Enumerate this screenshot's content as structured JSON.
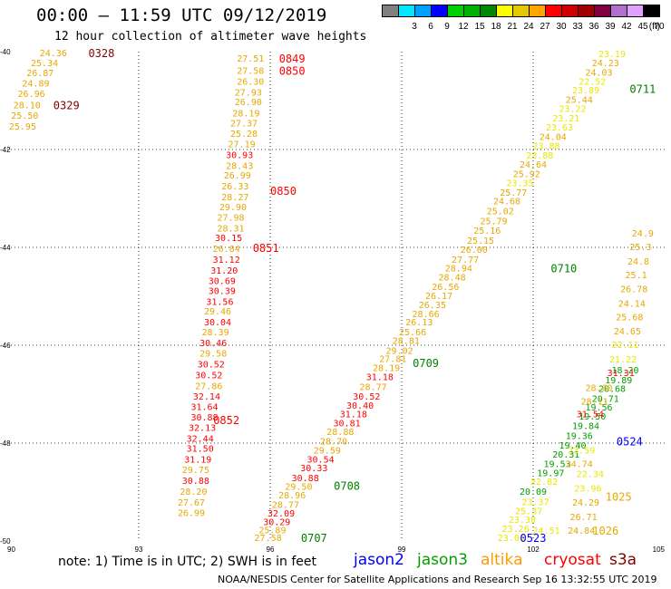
{
  "header": {
    "title": "00:00 – 11:59 UTC 09/12/2019",
    "subtitle": "12 hour collection of altimeter wave heights"
  },
  "scale": {
    "unit": "(ft)",
    "bins": [
      {
        "label": "",
        "color": "#808080"
      },
      {
        "label": "3",
        "color": "#00e8ff"
      },
      {
        "label": "6",
        "color": "#00a0ff"
      },
      {
        "label": "9",
        "color": "#0000ff"
      },
      {
        "label": "12",
        "color": "#00d000"
      },
      {
        "label": "15",
        "color": "#00b000"
      },
      {
        "label": "18",
        "color": "#008800"
      },
      {
        "label": "21",
        "color": "#ffff00"
      },
      {
        "label": "24",
        "color": "#e6c800"
      },
      {
        "label": "27",
        "color": "#ffa500"
      },
      {
        "label": "30",
        "color": "#ff0000"
      },
      {
        "label": "33",
        "color": "#d00000"
      },
      {
        "label": "36",
        "color": "#a00000"
      },
      {
        "label": "39",
        "color": "#800040"
      },
      {
        "label": "42",
        "color": "#b070d0"
      },
      {
        "label": "45",
        "color": "#e0a0ff"
      },
      {
        "label": "70",
        "color": "#000000"
      }
    ]
  },
  "footer": {
    "note": "note: 1) Time is in UTC; 2) SWH is in feet",
    "credit": "NOAA/NESDIS Center for Satellite Applications and Research    Sep 16 13:32:55 UTC 2019",
    "satellites": [
      {
        "name": "jason2",
        "color": "#0000ff"
      },
      {
        "name": "jason3",
        "color": "#00a000"
      },
      {
        "name": "altika",
        "color": "#ff9900"
      },
      {
        "name": "cryosat",
        "color": "#ff0000"
      },
      {
        "name": "s3a",
        "color": "#800000"
      }
    ]
  },
  "chart_data": {
    "type": "scatter",
    "xlim": [
      90,
      105
    ],
    "ylim": [
      -50,
      -40
    ],
    "xticks": [
      "90",
      "93",
      "96",
      "99",
      "102",
      "105"
    ],
    "yticks": [
      "-40",
      "-42",
      "-44",
      "-46",
      "-48",
      "-50"
    ],
    "grid": true,
    "colors": {
      "jason2": "#0000ff",
      "jason3": "#008000",
      "altika": "#e6a800",
      "cryosat": "#ff0000",
      "s3a": "#800000",
      "yellow": "#e8e800"
    },
    "time_labels": [
      {
        "text": "0328",
        "x": 92.15,
        "y": -40.02,
        "sat": "s3a"
      },
      {
        "text": "0329",
        "x": 91.35,
        "y": -41.08,
        "sat": "s3a"
      },
      {
        "text": "0849",
        "x": 96.5,
        "y": -40.13,
        "sat": "cryosat"
      },
      {
        "text": "0850",
        "x": 96.5,
        "y": -40.38,
        "sat": "cryosat"
      },
      {
        "text": "0850",
        "x": 96.3,
        "y": -42.83,
        "sat": "cryosat"
      },
      {
        "text": "0851",
        "x": 95.9,
        "y": -44.0,
        "sat": "cryosat"
      },
      {
        "text": "0852",
        "x": 95.0,
        "y": -47.52,
        "sat": "cryosat"
      },
      {
        "text": "0707",
        "x": 97.0,
        "y": -49.93,
        "sat": "jason3"
      },
      {
        "text": "0708",
        "x": 97.75,
        "y": -48.86,
        "sat": "jason3"
      },
      {
        "text": "0709",
        "x": 99.55,
        "y": -46.35,
        "sat": "jason3"
      },
      {
        "text": "0710",
        "x": 102.7,
        "y": -44.42,
        "sat": "jason3"
      },
      {
        "text": "0711",
        "x": 104.5,
        "y": -40.75,
        "sat": "jason3"
      },
      {
        "text": "0524",
        "x": 104.2,
        "y": -47.95,
        "sat": "jason2"
      },
      {
        "text": "0523",
        "x": 102.0,
        "y": -49.93,
        "sat": "jason2"
      },
      {
        "text": "1025",
        "x": 103.95,
        "y": -49.08,
        "sat": "altika"
      },
      {
        "text": "1026",
        "x": 103.65,
        "y": -49.78,
        "sat": "altika"
      }
    ],
    "tracks": [
      {
        "sat": "s3a",
        "values": [
          {
            "x": 91.05,
            "y": -40.02,
            "v": "24.36"
          },
          {
            "x": 90.85,
            "y": -40.22,
            "v": "25.34"
          },
          {
            "x": 90.75,
            "y": -40.43,
            "v": "26.87"
          },
          {
            "x": 90.65,
            "y": -40.64,
            "v": "24.89"
          },
          {
            "x": 90.55,
            "y": -40.85,
            "v": "26.96"
          },
          {
            "x": 90.45,
            "y": -41.08,
            "v": "28.10"
          },
          {
            "x": 90.4,
            "y": -41.3,
            "v": "25.50"
          },
          {
            "x": 90.35,
            "y": -41.52,
            "v": "25.95"
          }
        ]
      },
      {
        "sat": "cryosat",
        "values": [
          {
            "x": 95.55,
            "y": -40.13,
            "v": "27.51"
          },
          {
            "x": 95.55,
            "y": -40.38,
            "v": "27.58"
          },
          {
            "x": 95.55,
            "y": -40.6,
            "v": "26.30"
          },
          {
            "x": 95.5,
            "y": -40.82,
            "v": "27.93"
          },
          {
            "x": 95.5,
            "y": -41.02,
            "v": "26.90"
          },
          {
            "x": 95.45,
            "y": -41.25,
            "v": "28.19"
          },
          {
            "x": 95.4,
            "y": -41.45,
            "v": "27.37"
          },
          {
            "x": 95.4,
            "y": -41.67,
            "v": "25.28"
          },
          {
            "x": 95.35,
            "y": -41.88,
            "v": "27.19"
          },
          {
            "x": 95.3,
            "y": -42.1,
            "v": "30.93"
          },
          {
            "x": 95.3,
            "y": -42.32,
            "v": "28.43"
          },
          {
            "x": 95.25,
            "y": -42.52,
            "v": "26.99"
          },
          {
            "x": 95.2,
            "y": -42.74,
            "v": "26.33"
          },
          {
            "x": 95.2,
            "y": -42.96,
            "v": "28.27"
          },
          {
            "x": 95.15,
            "y": -43.17,
            "v": "29.90"
          },
          {
            "x": 95.1,
            "y": -43.38,
            "v": "27.98"
          },
          {
            "x": 95.1,
            "y": -43.6,
            "v": "28.31"
          },
          {
            "x": 95.05,
            "y": -43.8,
            "v": "30.15"
          },
          {
            "x": 95.0,
            "y": -44.02,
            "v": "26.84"
          },
          {
            "x": 95.0,
            "y": -44.24,
            "v": "31.12"
          },
          {
            "x": 94.95,
            "y": -44.46,
            "v": "31.20"
          },
          {
            "x": 94.9,
            "y": -44.68,
            "v": "30.69"
          },
          {
            "x": 94.9,
            "y": -44.88,
            "v": "30.39"
          },
          {
            "x": 94.85,
            "y": -45.1,
            "v": "31.56"
          },
          {
            "x": 94.8,
            "y": -45.3,
            "v": "29.46"
          },
          {
            "x": 94.8,
            "y": -45.52,
            "v": "30.04"
          },
          {
            "x": 94.75,
            "y": -45.72,
            "v": "28.39"
          },
          {
            "x": 94.7,
            "y": -45.94,
            "v": "30.46"
          },
          {
            "x": 94.7,
            "y": -46.16,
            "v": "29.58"
          },
          {
            "x": 94.65,
            "y": -46.38,
            "v": "30.52"
          },
          {
            "x": 94.6,
            "y": -46.6,
            "v": "30.52"
          },
          {
            "x": 94.6,
            "y": -46.82,
            "v": "27.86"
          },
          {
            "x": 94.55,
            "y": -47.04,
            "v": "32.14"
          },
          {
            "x": 94.5,
            "y": -47.25,
            "v": "31.64"
          },
          {
            "x": 94.5,
            "y": -47.46,
            "v": "30.88"
          },
          {
            "x": 94.45,
            "y": -47.68,
            "v": "32.13"
          },
          {
            "x": 94.4,
            "y": -47.9,
            "v": "32.44"
          },
          {
            "x": 94.4,
            "y": -48.1,
            "v": "31.50"
          },
          {
            "x": 94.35,
            "y": -48.32,
            "v": "31.19"
          },
          {
            "x": 94.3,
            "y": -48.54,
            "v": "29.75"
          },
          {
            "x": 94.3,
            "y": -48.76,
            "v": "30.88"
          },
          {
            "x": 94.25,
            "y": -48.98,
            "v": "28.20"
          },
          {
            "x": 94.2,
            "y": -49.2,
            "v": "27.67"
          },
          {
            "x": 94.2,
            "y": -49.42,
            "v": "26.99"
          }
        ]
      },
      {
        "sat": "jason3",
        "values": [
          {
            "x": 95.95,
            "y": -49.93,
            "v": "27.58"
          },
          {
            "x": 96.05,
            "y": -49.77,
            "v": "25.89"
          },
          {
            "x": 96.15,
            "y": -49.6,
            "v": "30.29"
          },
          {
            "x": 96.25,
            "y": -49.43,
            "v": "32.09"
          },
          {
            "x": 96.35,
            "y": -49.25,
            "v": "28.77"
          },
          {
            "x": 96.5,
            "y": -49.06,
            "v": "28.96"
          },
          {
            "x": 96.65,
            "y": -48.88,
            "v": "29.50"
          },
          {
            "x": 96.8,
            "y": -48.7,
            "v": "30.88"
          },
          {
            "x": 97.0,
            "y": -48.5,
            "v": "30.33"
          },
          {
            "x": 97.15,
            "y": -48.32,
            "v": "30.54"
          },
          {
            "x": 97.3,
            "y": -48.14,
            "v": "29.59"
          },
          {
            "x": 97.45,
            "y": -47.95,
            "v": "28.70"
          },
          {
            "x": 97.6,
            "y": -47.76,
            "v": "28.88"
          },
          {
            "x": 97.75,
            "y": -47.58,
            "v": "30.81"
          },
          {
            "x": 97.9,
            "y": -47.4,
            "v": "31.18"
          },
          {
            "x": 98.05,
            "y": -47.22,
            "v": "30.40"
          },
          {
            "x": 98.2,
            "y": -47.04,
            "v": "30.52"
          },
          {
            "x": 98.35,
            "y": -46.84,
            "v": "28.77"
          },
          {
            "x": 98.5,
            "y": -46.64,
            "v": "31.18"
          },
          {
            "x": 98.65,
            "y": -46.45,
            "v": "28.19"
          },
          {
            "x": 98.8,
            "y": -46.27,
            "v": "27.81"
          },
          {
            "x": 98.95,
            "y": -46.1,
            "v": "29.02"
          },
          {
            "x": 99.1,
            "y": -45.9,
            "v": "28.81"
          },
          {
            "x": 99.25,
            "y": -45.72,
            "v": "25.66"
          },
          {
            "x": 99.4,
            "y": -45.52,
            "v": "26.13"
          },
          {
            "x": 99.55,
            "y": -45.35,
            "v": "28.66"
          },
          {
            "x": 99.7,
            "y": -45.17,
            "v": "26.35"
          },
          {
            "x": 99.85,
            "y": -44.98,
            "v": "26.17"
          },
          {
            "x": 100.0,
            "y": -44.8,
            "v": "26.56"
          },
          {
            "x": 100.15,
            "y": -44.6,
            "v": "28.48"
          },
          {
            "x": 100.3,
            "y": -44.42,
            "v": "28.94"
          },
          {
            "x": 100.45,
            "y": -44.24,
            "v": "27.77"
          },
          {
            "x": 100.65,
            "y": -44.04,
            "v": "26.00"
          },
          {
            "x": 100.8,
            "y": -43.85,
            "v": "25.15"
          },
          {
            "x": 100.95,
            "y": -43.65,
            "v": "25.16"
          },
          {
            "x": 101.1,
            "y": -43.45,
            "v": "25.79"
          },
          {
            "x": 101.25,
            "y": -43.25,
            "v": "25.02"
          },
          {
            "x": 101.4,
            "y": -43.05,
            "v": "24.68"
          },
          {
            "x": 101.55,
            "y": -42.87,
            "v": "25.77"
          },
          {
            "x": 101.7,
            "y": -42.68,
            "v": "23.35"
          },
          {
            "x": 101.85,
            "y": -42.49,
            "v": "25.92"
          },
          {
            "x": 102.0,
            "y": -42.3,
            "v": "24.64"
          },
          {
            "x": 102.15,
            "y": -42.11,
            "v": "23.88"
          },
          {
            "x": 102.3,
            "y": -41.92,
            "v": "23.88"
          },
          {
            "x": 102.45,
            "y": -41.73,
            "v": "24.04"
          },
          {
            "x": 102.6,
            "y": -41.54,
            "v": "23.63"
          },
          {
            "x": 102.75,
            "y": -41.35,
            "v": "23.21"
          },
          {
            "x": 102.9,
            "y": -41.16,
            "v": "23.22"
          },
          {
            "x": 103.05,
            "y": -40.97,
            "v": "25.44"
          },
          {
            "x": 103.2,
            "y": -40.78,
            "v": "23.89"
          },
          {
            "x": 103.35,
            "y": -40.6,
            "v": "22.52"
          },
          {
            "x": 103.5,
            "y": -40.42,
            "v": "24.03"
          },
          {
            "x": 103.65,
            "y": -40.22,
            "v": "24.23"
          },
          {
            "x": 103.8,
            "y": -40.04,
            "v": "23.19"
          }
        ]
      },
      {
        "sat": "jason2",
        "values": [
          {
            "x": 102.3,
            "y": -49.78,
            "v": "24.51"
          },
          {
            "x": 101.5,
            "y": -49.93,
            "v": "23.06"
          },
          {
            "x": 101.6,
            "y": -49.74,
            "v": "23.26"
          },
          {
            "x": 101.75,
            "y": -49.56,
            "v": "23.30"
          },
          {
            "x": 101.9,
            "y": -49.38,
            "v": "25.37"
          },
          {
            "x": 102.05,
            "y": -49.19,
            "v": "23.37"
          },
          {
            "x": 102.0,
            "y": -48.98,
            "v": "20.09"
          },
          {
            "x": 102.25,
            "y": -48.78,
            "v": "22.82"
          },
          {
            "x": 102.4,
            "y": -48.6,
            "v": "19.97"
          },
          {
            "x": 102.55,
            "y": -48.42,
            "v": "19.53"
          },
          {
            "x": 102.75,
            "y": -48.22,
            "v": "20.31"
          },
          {
            "x": 102.9,
            "y": -48.04,
            "v": "19.40"
          },
          {
            "x": 103.05,
            "y": -47.84,
            "v": "19.36"
          },
          {
            "x": 103.2,
            "y": -47.64,
            "v": "19.84"
          },
          {
            "x": 103.35,
            "y": -47.44,
            "v": "19.50"
          },
          {
            "x": 103.5,
            "y": -47.26,
            "v": "19.56"
          },
          {
            "x": 103.65,
            "y": -47.08,
            "v": "20.71"
          },
          {
            "x": 103.8,
            "y": -46.88,
            "v": "20.68"
          },
          {
            "x": 103.95,
            "y": -46.7,
            "v": "19.89"
          },
          {
            "x": 104.1,
            "y": -46.5,
            "v": "18.20"
          }
        ]
      },
      {
        "sat": "altika",
        "values": [
          {
            "x": 103.1,
            "y": -49.78,
            "v": "24.84"
          },
          {
            "x": 103.15,
            "y": -49.5,
            "v": "26.71"
          },
          {
            "x": 103.2,
            "y": -49.2,
            "v": "24.29"
          },
          {
            "x": 103.25,
            "y": -48.92,
            "v": "23.96"
          },
          {
            "x": 103.3,
            "y": -48.62,
            "v": "22.34"
          },
          {
            "x": 103.05,
            "y": -48.42,
            "v": "24.74"
          },
          {
            "x": 103.1,
            "y": -48.14,
            "v": "23.59"
          },
          {
            "x": 103.3,
            "y": -47.4,
            "v": "31.54"
          },
          {
            "x": 103.4,
            "y": -47.14,
            "v": "28.11"
          },
          {
            "x": 103.5,
            "y": -46.86,
            "v": "28.60"
          },
          {
            "x": 104.0,
            "y": -46.56,
            "v": "31.31"
          },
          {
            "x": 104.05,
            "y": -46.28,
            "v": "21.22"
          },
          {
            "x": 104.1,
            "y": -45.98,
            "v": "22.11"
          },
          {
            "x": 104.15,
            "y": -45.7,
            "v": "24.65"
          },
          {
            "x": 104.2,
            "y": -45.42,
            "v": "25.68"
          },
          {
            "x": 104.25,
            "y": -45.14,
            "v": "24.14"
          },
          {
            "x": 104.3,
            "y": -44.84,
            "v": "26.78"
          },
          {
            "x": 104.35,
            "y": -44.56,
            "v": "25.1"
          },
          {
            "x": 104.4,
            "y": -44.28,
            "v": "24.8"
          },
          {
            "x": 104.45,
            "y": -43.98,
            "v": "25.3"
          },
          {
            "x": 104.5,
            "y": -43.7,
            "v": "24.9"
          }
        ]
      }
    ]
  }
}
